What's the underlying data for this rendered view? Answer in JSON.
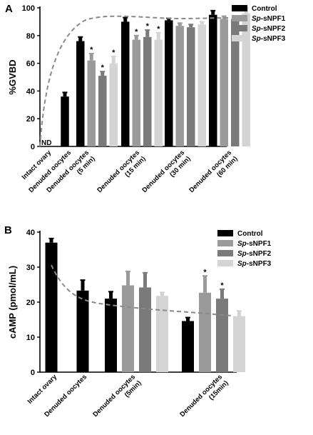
{
  "colors": {
    "Control": "#000000",
    "Sp-sNPF1": "#9a9a9a",
    "Sp-sNPF2": "#7a7a7a",
    "Sp-sNPF3": "#d4d4d4",
    "fit": "#8a8a8a"
  },
  "chart_data": [
    {
      "panel": "A",
      "type": "bar",
      "ylabel": "%GVBD",
      "ylim": [
        0,
        100
      ],
      "yticks": [
        "0",
        "20",
        "40",
        "60",
        "80",
        "100"
      ],
      "annotation": "ND",
      "legend_position": "top-right",
      "fit_curve": "dashed, saturating",
      "categories": [
        [
          "Intact ovary"
        ],
        [
          "Denuded oocytes"
        ],
        [
          "Denuded oocytes",
          "(5 min)"
        ],
        [
          "Denuded oocytes",
          "(15 min)"
        ],
        [
          "Denuded oocytes",
          "(30 min)"
        ],
        [
          "Denuded oocytes",
          "(60 min)"
        ]
      ],
      "series": [
        {
          "name": "Control",
          "prefix": "",
          "suffix": "Control",
          "values": [
            0,
            36,
            76,
            90,
            91,
            95
          ],
          "errors": [
            0,
            3,
            3,
            3,
            1.5,
            3
          ],
          "stars": [
            false,
            false,
            false,
            false,
            false,
            false
          ]
        },
        {
          "name": "Sp-sNPF1",
          "prefix": "Sp",
          "suffix": "-sNPF1",
          "values": [
            null,
            null,
            62,
            77,
            87,
            92
          ],
          "errors": [
            0,
            0,
            5,
            3,
            2,
            2
          ],
          "stars": [
            false,
            false,
            true,
            true,
            false,
            false
          ]
        },
        {
          "name": "Sp-sNPF2",
          "prefix": "Sp",
          "suffix": "-sNPF2",
          "values": [
            null,
            null,
            51,
            79,
            86,
            92
          ],
          "errors": [
            0,
            0,
            3,
            5,
            2,
            1.5
          ],
          "stars": [
            false,
            false,
            true,
            true,
            false,
            false
          ]
        },
        {
          "name": "Sp-sNPF3",
          "prefix": "Sp",
          "suffix": "-sNPF3",
          "values": [
            null,
            null,
            60,
            77,
            88,
            96
          ],
          "errors": [
            0,
            0,
            5,
            5,
            2,
            4
          ],
          "stars": [
            false,
            false,
            true,
            true,
            false,
            false
          ]
        }
      ]
    },
    {
      "panel": "B",
      "type": "bar",
      "ylabel": "cAMP (pmol/mL)",
      "ylim": [
        0,
        40
      ],
      "yticks": [
        "0",
        "10",
        "20",
        "30",
        "40"
      ],
      "legend_position": "top-right",
      "fit_curve": "dashed, decaying",
      "categories": [
        [
          "Intact ovary"
        ],
        [
          "Denuded oocytes"
        ],
        [
          "Denuded oocytes",
          "(5min)"
        ],
        [
          "Denuded oocytes",
          "(15min)"
        ]
      ],
      "series": [
        {
          "name": "Control",
          "prefix": "",
          "suffix": "Control",
          "values": [
            37,
            23.3,
            21,
            14.6
          ],
          "errors": [
            1.2,
            3,
            2,
            1
          ],
          "stars": [
            false,
            false,
            false,
            false
          ]
        },
        {
          "name": "Sp-sNPF1",
          "prefix": "Sp",
          "suffix": "-sNPF1",
          "values": [
            null,
            null,
            24.8,
            22.7
          ],
          "errors": [
            0,
            0,
            4,
            4.8
          ],
          "stars": [
            false,
            false,
            false,
            true
          ]
        },
        {
          "name": "Sp-sNPF2",
          "prefix": "Sp",
          "suffix": "-sNPF2",
          "values": [
            null,
            null,
            24.2,
            21
          ],
          "errors": [
            0,
            0,
            4.2,
            2.7
          ],
          "stars": [
            false,
            false,
            false,
            true
          ]
        },
        {
          "name": "Sp-sNPF3",
          "prefix": "Sp",
          "suffix": "-sNPF3",
          "values": [
            null,
            null,
            21.8,
            16
          ],
          "errors": [
            0,
            0,
            1,
            1.5
          ],
          "stars": [
            false,
            false,
            false,
            false
          ]
        }
      ]
    }
  ]
}
